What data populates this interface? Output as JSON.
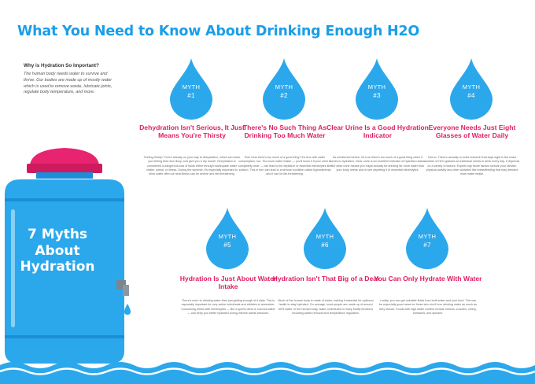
{
  "title": "What You Need to Know About Drinking Enough H2O",
  "intro": {
    "heading": "Why is Hydration So Important?",
    "body": "The human body needs water to survive and thrive. Our bodies are made up of mostly water which is used to remove waste, lubricate joints, regulate body temperature, and more."
  },
  "cooler": {
    "line1": "7 Myths",
    "line2": "About",
    "line3": "Hydration"
  },
  "myths": [
    {
      "label": "MYTH",
      "number": "#1",
      "heading": "Dehydration Isn't Serious, It Just Means You're Thirsty",
      "body": "Feeling thirsty? You're already on your way to dehydration, which can leave you feeling tired and dizzy, and give you a dry mouth. Dehydration is considered a dangerous loss of fluids either through inadequate water intake, sweat, or illness. During the summer, it's especially important to drink water often as heat illness can be severe and life-threatening."
    },
    {
      "label": "MYTH",
      "number": "#2",
      "heading": "There's No Such Thing As Drinking Too Much Water",
      "body": "Ever hear there's too much of a good thing? It's true with water consumption, too. Too much water intake — you'll know it if your urine is completely clear — can lead to the depletion of essential electrolytes like sodium. This in turn can lead to a serious condition called hyponatremia and it can be life-threatening."
    },
    {
      "label": "MYTH",
      "number": "#3",
      "heading": "Clear Urine Is a Good Hydration Indicator",
      "body": "As mentioned before, it's true there's too much of a good thing when it comes to hydration. Clear urine is an excellent indicator of hydration status. But clear urine means you might actually be drinking far more water than your body needs and in turn depleting it of essential electrolytes."
    },
    {
      "label": "MYTH",
      "number": "#4",
      "heading": "Everyone Needs Just Eight Glasses of Water Daily",
      "body": "Not so. There's actually no solid research that says eight is the exact number of H2O glasses an individual needs to drink every day. It depends on a variety of factors. Experts say those factors include your climate, physical activity and other activities like breastfeeding that may demand more water intake."
    },
    {
      "label": "MYTH",
      "number": "#5",
      "heading": "Hydration Is Just About Water Intake",
      "body": "There's more to drinking water than just getting enough of it daily. This is especially important for very active individuals and athletes to remember. Consuming drinks with electrolytes — like a sports drink or coconut water — can keep you better hydrated during intense sweat sessions."
    },
    {
      "label": "MYTH",
      "number": "#6",
      "heading": "Hydration Isn't That Big of a Deal",
      "body": "Much of the human body is made of water, making it essential for optimum health to stay hydrated. On average, most people are made up of around 60% water. In the human body, water contributes to many bodily functions including waste removal and temperature regulation."
    },
    {
      "label": "MYTH",
      "number": "#7",
      "heading": "You Can Only Hydrate With Water",
      "body": "Luckily, you can get valuable fluids from both water and your food. This can be especially good news for those who don't love drinking water as much as they should. Foods with high water content include melons, zucchini, celery, tomatoes, and spinach."
    }
  ],
  "colors": {
    "accent_blue": "#1a9ee8",
    "drop_blue": "#2ba8ec",
    "heading_pink": "#e01d63",
    "cap_pink": "#e8236f"
  }
}
